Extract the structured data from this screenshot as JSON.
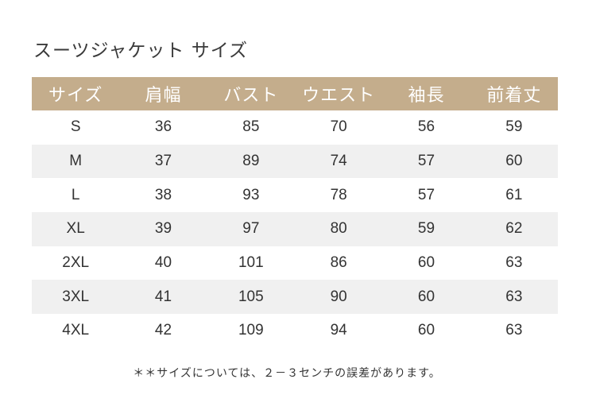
{
  "title": "スーツジャケット サイズ",
  "colors": {
    "header_bg": "#c4ad8c",
    "header_text": "#ffffff",
    "alt_row_bg": "#f0f0f0",
    "text": "#333333"
  },
  "table": {
    "headers": [
      "サイズ",
      "肩幅",
      "バスト",
      "ウエスト",
      "袖長",
      "前着丈"
    ],
    "rows": [
      [
        "S",
        "36",
        "85",
        "70",
        "56",
        "59"
      ],
      [
        "M",
        "37",
        "89",
        "74",
        "57",
        "60"
      ],
      [
        "L",
        "38",
        "93",
        "78",
        "57",
        "61"
      ],
      [
        "XL",
        "39",
        "97",
        "80",
        "59",
        "62"
      ],
      [
        "2XL",
        "40",
        "101",
        "86",
        "60",
        "63"
      ],
      [
        "3XL",
        "41",
        "105",
        "90",
        "60",
        "63"
      ],
      [
        "4XL",
        "42",
        "109",
        "94",
        "60",
        "63"
      ]
    ]
  },
  "note": "＊＊サイズについては、２－３センチの誤差があります。"
}
